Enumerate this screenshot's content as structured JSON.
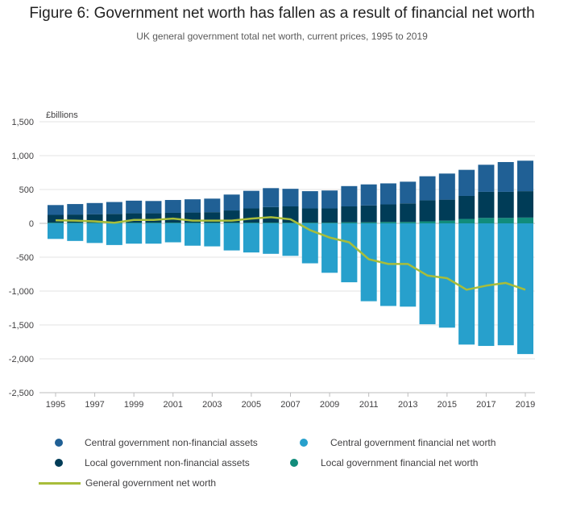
{
  "title": "Figure 6: Government net worth has fallen as a result of financial net worth",
  "subtitle": "UK general government total net worth, current prices, 1995 to 2019",
  "chart_data": {
    "type": "bar",
    "stacked": true,
    "unit_label": "£billions",
    "ylim": [
      -2500,
      1500
    ],
    "y_ticks": [
      1500,
      1000,
      500,
      0,
      -500,
      -1000,
      -1500,
      -2000,
      -2500
    ],
    "y_tick_labels": [
      "1,500",
      "1,000",
      "500",
      "0",
      "-500",
      "-1,000",
      "-1,500",
      "-2,000",
      "-2,500"
    ],
    "x_tick_labels": [
      "1995",
      "1997",
      "1999",
      "2001",
      "2003",
      "2005",
      "2007",
      "2009",
      "2011",
      "2013",
      "2015",
      "2017",
      "2019"
    ],
    "grid": true,
    "legend_position": "bottom",
    "categories": [
      "1995",
      "1996",
      "1997",
      "1998",
      "1999",
      "2000",
      "2001",
      "2002",
      "2003",
      "2004",
      "2005",
      "2006",
      "2007",
      "2008",
      "2009",
      "2010",
      "2011",
      "2012",
      "2013",
      "2014",
      "2015",
      "2016",
      "2017",
      "2018",
      "2019"
    ],
    "series": [
      {
        "name": "Central government non-financial assets",
        "color": "#206095",
        "values": [
          145,
          155,
          165,
          175,
          185,
          180,
          190,
          195,
          200,
          235,
          260,
          280,
          260,
          255,
          265,
          300,
          310,
          310,
          320,
          355,
          385,
          385,
          400,
          440,
          450
        ]
      },
      {
        "name": "Local government non-financial assets",
        "color": "#003c57",
        "values": [
          115,
          120,
          125,
          130,
          140,
          140,
          145,
          150,
          155,
          180,
          210,
          230,
          240,
          210,
          210,
          235,
          250,
          260,
          275,
          310,
          310,
          340,
          385,
          385,
          390
        ]
      },
      {
        "name": "Central government financial net worth",
        "color": "#27a0cc",
        "values": [
          -230,
          -260,
          -290,
          -320,
          -300,
          -300,
          -280,
          -330,
          -340,
          -400,
          -430,
          -450,
          -480,
          -590,
          -730,
          -870,
          -1150,
          -1220,
          -1230,
          -1490,
          -1540,
          -1790,
          -1810,
          -1800,
          -1930
        ]
      },
      {
        "name": "Local government financial net worth",
        "color": "#118c7b",
        "values": [
          10,
          10,
          10,
          10,
          10,
          10,
          10,
          10,
          10,
          10,
          10,
          10,
          10,
          10,
          10,
          15,
          15,
          20,
          20,
          30,
          40,
          65,
          80,
          80,
          85
        ]
      },
      {
        "name": "General government net worth",
        "color": "#a8bd3a",
        "type": "line",
        "values": [
          45,
          40,
          30,
          10,
          50,
          50,
          70,
          40,
          40,
          40,
          70,
          90,
          60,
          -100,
          -210,
          -280,
          -530,
          -600,
          -600,
          -770,
          -810,
          -980,
          -920,
          -880,
          -980
        ]
      }
    ]
  }
}
